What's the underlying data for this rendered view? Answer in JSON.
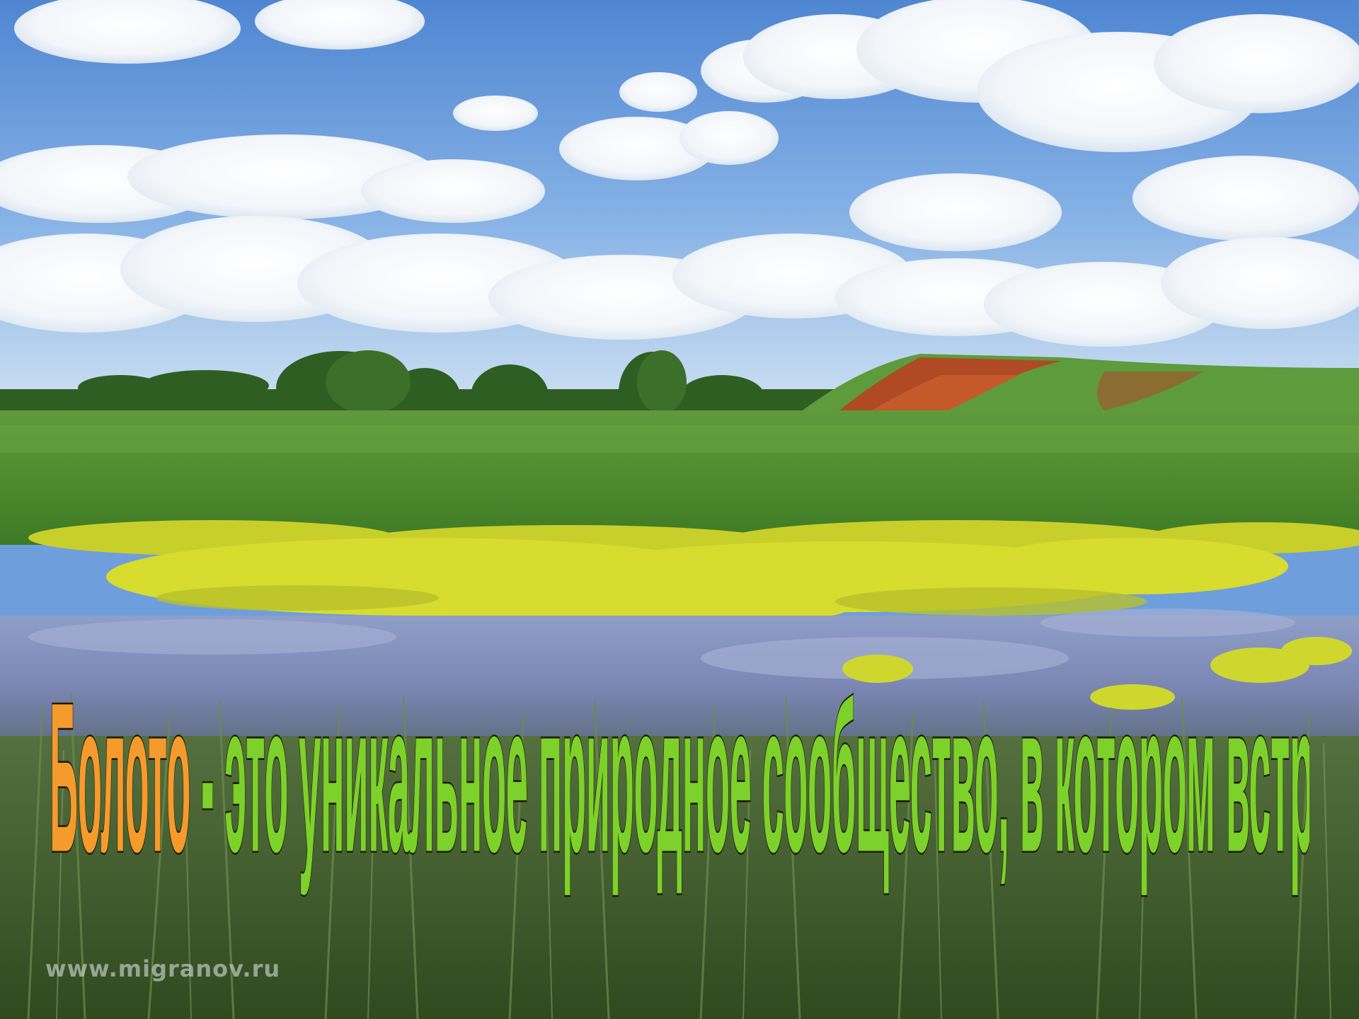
{
  "caption": {
    "part1": "Болото",
    "part2": " - это уникальное  природное сообщество, в котором встречаются  очень редкие  виды флоры и фауны.",
    "colors": {
      "part1": "#f59a2c",
      "part2": "#7cd12a",
      "outline": "#1f1a00"
    }
  },
  "watermark": "www.migranov.ru"
}
